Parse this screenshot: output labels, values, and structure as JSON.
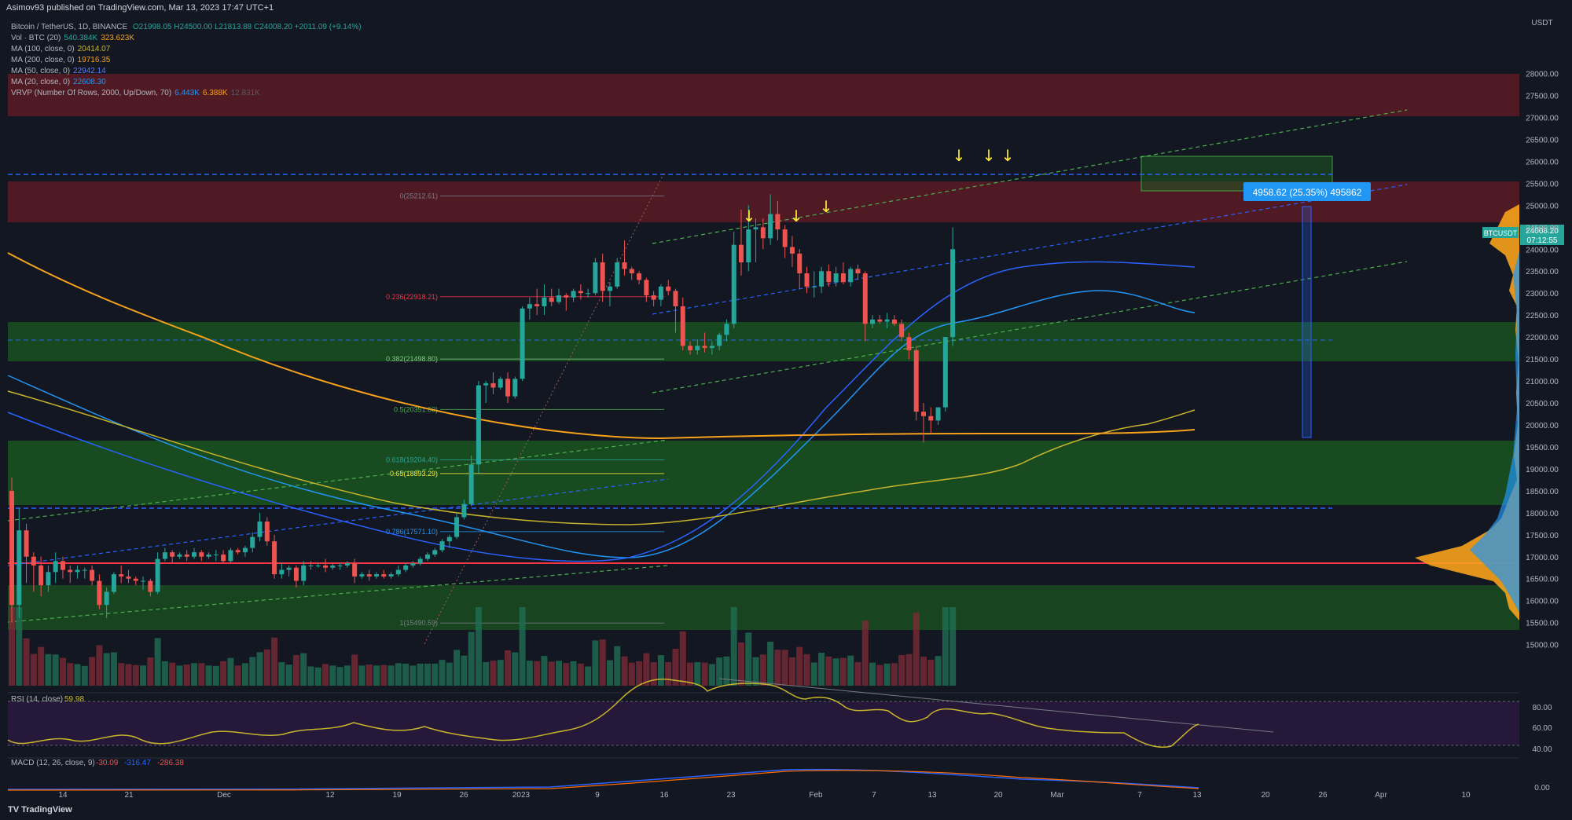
{
  "header": {
    "publisher": "Asimov93 published on TradingView.com, Mar 13, 2023 17:47 UTC+1"
  },
  "legend": {
    "symbol": "Bitcoin / TetherUS, 1D, BINANCE",
    "ohlc": "O21998.05 H24500.00 L21813.88 C24008.20 +2011.09 (+9.14%)",
    "vol_label": "Vol · BTC (20)",
    "vol_v1": "540.384K",
    "vol_v2": "323.623K",
    "ma100_label": "MA (100, close, 0)",
    "ma100_val": "20414.07",
    "ma200_label": "MA (200, close, 0)",
    "ma200_val": "19716.35",
    "ma50_label": "MA (50, close, 0)",
    "ma50_val": "22942.14",
    "ma20_label": "MA (20, close, 0)",
    "ma20_val": "22608.30",
    "vrvp_label": "VRVP (Number Of Rows, 2000, Up/Down, 70)",
    "vrvp_v1": "6.443K",
    "vrvp_v2": "6.388K",
    "vrvp_v3": "12.831K"
  },
  "price_axis": {
    "currency": "USDT",
    "labels": [
      "28000.00",
      "27500.00",
      "27000.00",
      "26500.00",
      "26000.00",
      "25500.00",
      "25000.00",
      "24500.00",
      "24000.00",
      "23500.00",
      "23000.00",
      "22500.00",
      "22000.00",
      "21500.00",
      "21000.00",
      "20500.00",
      "20000.00",
      "19500.00",
      "19000.00",
      "18500.00",
      "18000.00",
      "17500.00",
      "17000.00",
      "16500.00",
      "16000.00",
      "15500.00",
      "15000.00"
    ],
    "current_symbol": "BTCUSDT",
    "current_price": "24008.20",
    "countdown": "07:12:55"
  },
  "time_axis": {
    "labels": [
      "14",
      "21",
      "Dec",
      "12",
      "19",
      "26",
      "2023",
      "9",
      "16",
      "23",
      "Feb",
      "7",
      "13",
      "20",
      "Mar",
      "7",
      "13",
      "20",
      "26",
      "Apr",
      "10"
    ]
  },
  "fib": {
    "levels": [
      "0(25212.61)",
      "0.236(22918.21)",
      "0.382(21498.80)",
      "0.5(20351.60)",
      "0.618(19204.40)",
      "0.65(18893.29)",
      "0.786(17571.10)",
      "1(15490.59)"
    ]
  },
  "measure_label": "4958.62 (25.35%) 495862",
  "rsi": {
    "label": "RSI (14, close)",
    "value": "59.98",
    "axis": [
      "80.00",
      "60.00",
      "40.00"
    ]
  },
  "macd": {
    "label": "MACD (12, 26, close, 9)",
    "v1": "-30.09",
    "v2": "-316.47",
    "v3": "-286.38",
    "axis": "0.00"
  },
  "footer": {
    "brand": "TradingView"
  },
  "colors": {
    "background": "#131722",
    "bull": "#26a69a",
    "bear": "#ef5350",
    "ma200": "#f7a21b",
    "ma100": "#c7b42c",
    "ma50": "#2962ff",
    "ma20": "#2196f3",
    "support_zone": "#1b5e20",
    "resistance_zone": "#5a1b24",
    "measure": "#2196f3"
  },
  "chart_data": {
    "type": "candlestick",
    "symbol": "BTCUSDT",
    "interval": "1D",
    "ylim": [
      14600,
      28600
    ],
    "start": "2022-11-09",
    "candles": [
      [
        18500,
        18800,
        15500,
        15900
      ],
      [
        15900,
        18100,
        15600,
        17600
      ],
      [
        17600,
        17750,
        16400,
        17000
      ],
      [
        17000,
        17100,
        16200,
        16800
      ],
      [
        16800,
        17000,
        16100,
        16350
      ],
      [
        16350,
        16800,
        16200,
        16650
      ],
      [
        16650,
        17100,
        16400,
        16900
      ],
      [
        16900,
        17000,
        16500,
        16700
      ],
      [
        16700,
        16800,
        16400,
        16650
      ],
      [
        16650,
        16800,
        16500,
        16700
      ],
      [
        16700,
        16750,
        16500,
        16700
      ],
      [
        16700,
        16800,
        16350,
        16450
      ],
      [
        16450,
        16600,
        15800,
        15900
      ],
      [
        15900,
        16300,
        15600,
        16200
      ],
      [
        16200,
        16650,
        16150,
        16600
      ],
      [
        16600,
        16800,
        16400,
        16550
      ],
      [
        16550,
        16700,
        16400,
        16500
      ],
      [
        16500,
        16550,
        16350,
        16450
      ],
      [
        16450,
        16550,
        16250,
        16450
      ],
      [
        16450,
        16500,
        16100,
        16200
      ],
      [
        16200,
        17100,
        16150,
        16950
      ],
      [
        16950,
        17200,
        16900,
        17100
      ],
      [
        17100,
        17150,
        16850,
        17000
      ],
      [
        17000,
        17100,
        16950,
        17050
      ],
      [
        17050,
        17150,
        16900,
        17000
      ],
      [
        17000,
        17200,
        16950,
        17100
      ],
      [
        17100,
        17150,
        16900,
        17000
      ],
      [
        17000,
        17100,
        16950,
        17050
      ],
      [
        17050,
        17150,
        16900,
        17050
      ],
      [
        17050,
        17150,
        16850,
        16900
      ],
      [
        16900,
        17200,
        16850,
        17150
      ],
      [
        17150,
        17200,
        17050,
        17100
      ],
      [
        17100,
        17250,
        17000,
        17200
      ],
      [
        17200,
        17550,
        17100,
        17450
      ],
      [
        17450,
        18000,
        17350,
        17800
      ],
      [
        17800,
        17900,
        17250,
        17350
      ],
      [
        17350,
        17500,
        16500,
        16600
      ],
      [
        16600,
        16850,
        16500,
        16700
      ],
      [
        16700,
        16800,
        16550,
        16750
      ],
      [
        16750,
        16800,
        16300,
        16450
      ],
      [
        16450,
        16900,
        16350,
        16800
      ],
      [
        16800,
        16900,
        16700,
        16800
      ],
      [
        16800,
        16850,
        16750,
        16800
      ],
      [
        16800,
        16950,
        16650,
        16750
      ],
      [
        16750,
        16850,
        16700,
        16800
      ],
      [
        16800,
        16850,
        16700,
        16800
      ],
      [
        16800,
        16900,
        16750,
        16850
      ],
      [
        16850,
        16950,
        16400,
        16550
      ],
      [
        16550,
        16650,
        16500,
        16600
      ],
      [
        16600,
        16700,
        16450,
        16550
      ],
      [
        16550,
        16650,
        16500,
        16600
      ],
      [
        16600,
        16700,
        16500,
        16550
      ],
      [
        16550,
        16650,
        16500,
        16600
      ],
      [
        16600,
        16800,
        16550,
        16700
      ],
      [
        16700,
        16850,
        16650,
        16800
      ],
      [
        16800,
        16900,
        16750,
        16850
      ],
      [
        16850,
        17000,
        16800,
        16950
      ],
      [
        16950,
        17100,
        16900,
        17050
      ],
      [
        17050,
        17200,
        17000,
        17150
      ],
      [
        17150,
        17400,
        17100,
        17350
      ],
      [
        17350,
        17500,
        17200,
        17450
      ],
      [
        17450,
        18000,
        17400,
        17900
      ],
      [
        17900,
        18300,
        17850,
        18200
      ],
      [
        18200,
        19300,
        18150,
        19100
      ],
      [
        19100,
        21000,
        18900,
        20900
      ],
      [
        20900,
        21000,
        20500,
        20950
      ],
      [
        20950,
        21200,
        20700,
        20850
      ],
      [
        20850,
        21100,
        20800,
        21050
      ],
      [
        21050,
        21200,
        20500,
        20650
      ],
      [
        20650,
        21100,
        20600,
        21050
      ],
      [
        21050,
        22700,
        21000,
        22650
      ],
      [
        22650,
        22900,
        22400,
        22750
      ],
      [
        22750,
        23100,
        22500,
        22700
      ],
      [
        22700,
        23200,
        22500,
        22900
      ],
      [
        22900,
        23100,
        22700,
        22800
      ],
      [
        22800,
        23100,
        22750,
        22950
      ],
      [
        22950,
        23000,
        22600,
        22900
      ],
      [
        22900,
        23100,
        22800,
        23050
      ],
      [
        23050,
        23200,
        22850,
        23000
      ],
      [
        23000,
        23100,
        22900,
        23000
      ],
      [
        23000,
        23800,
        22950,
        23700
      ],
      [
        23700,
        23900,
        22800,
        23050
      ],
      [
        23050,
        23250,
        22700,
        23150
      ],
      [
        23150,
        23800,
        23100,
        23700
      ],
      [
        23700,
        24200,
        23400,
        23550
      ],
      [
        23550,
        23600,
        23300,
        23450
      ],
      [
        23450,
        23500,
        23200,
        23300
      ],
      [
        23300,
        23350,
        22800,
        22950
      ],
      [
        22950,
        23050,
        22700,
        22850
      ],
      [
        22850,
        23200,
        22700,
        23150
      ],
      [
        23150,
        23300,
        22950,
        23050
      ],
      [
        23050,
        23100,
        22100,
        22700
      ],
      [
        22700,
        22900,
        21700,
        21800
      ],
      [
        21800,
        21900,
        21600,
        21700
      ],
      [
        21700,
        21950,
        21600,
        21800
      ],
      [
        21800,
        22100,
        21650,
        21750
      ],
      [
        21750,
        21900,
        21600,
        21800
      ],
      [
        21800,
        22100,
        21700,
        22050
      ],
      [
        22050,
        22400,
        21900,
        22300
      ],
      [
        22300,
        24400,
        22200,
        24100
      ],
      [
        24100,
        24900,
        23400,
        23700
      ],
      [
        23700,
        25000,
        23500,
        24450
      ],
      [
        24450,
        24700,
        23700,
        24500
      ],
      [
        24500,
        24700,
        24000,
        24250
      ],
      [
        24250,
        25250,
        24100,
        24800
      ],
      [
        24800,
        25100,
        24200,
        24450
      ],
      [
        24450,
        24550,
        23800,
        24050
      ],
      [
        24050,
        24300,
        23600,
        23900
      ],
      [
        23900,
        24000,
        23100,
        23450
      ],
      [
        23450,
        23600,
        23000,
        23150
      ],
      [
        23150,
        23500,
        22900,
        23150
      ],
      [
        23150,
        23600,
        23000,
        23500
      ],
      [
        23500,
        23650,
        23150,
        23250
      ],
      [
        23250,
        23600,
        23150,
        23450
      ],
      [
        23450,
        23700,
        23200,
        23250
      ],
      [
        23250,
        23600,
        23150,
        23550
      ],
      [
        23550,
        23650,
        23300,
        23450
      ],
      [
        23450,
        23500,
        21900,
        22300
      ],
      [
        22300,
        22500,
        22200,
        22400
      ],
      [
        22400,
        22500,
        22300,
        22350
      ],
      [
        22350,
        22550,
        22200,
        22400
      ],
      [
        22400,
        22500,
        22250,
        22300
      ],
      [
        22300,
        22400,
        21900,
        22000
      ],
      [
        22000,
        22100,
        21500,
        21700
      ],
      [
        21700,
        21800,
        20100,
        20300
      ],
      [
        20300,
        20500,
        19600,
        20200
      ],
      [
        20200,
        20400,
        19800,
        20100
      ],
      [
        20100,
        20400,
        20000,
        20400
      ],
      [
        20400,
        22000,
        20300,
        22000
      ],
      [
        22000,
        24500,
        21800,
        24000
      ]
    ]
  }
}
